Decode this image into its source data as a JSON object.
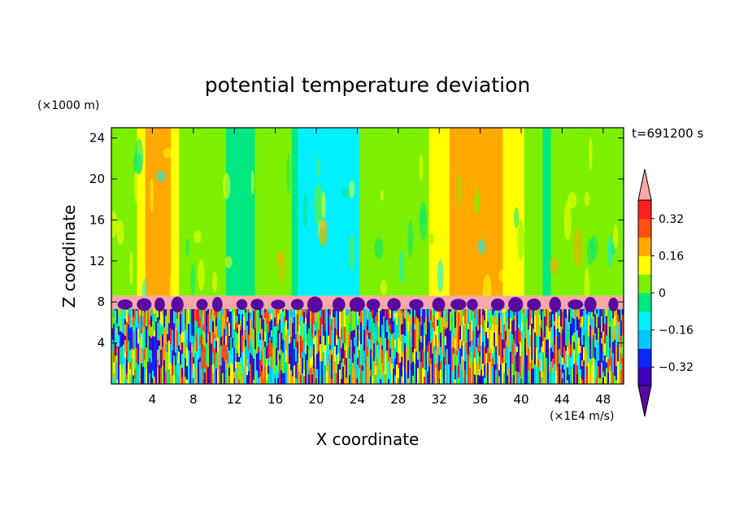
{
  "chart_data": {
    "type": "heatmap",
    "title": "potential temperature deviation",
    "xlabel": "X coordinate",
    "ylabel": "Z coordinate",
    "x_unit": "(×1E4 m/s)",
    "y_unit": "(×1000 m)",
    "time_label": "t=691200 s",
    "xlim": [
      0,
      50
    ],
    "ylim": [
      0,
      25
    ],
    "x_ticks": [
      "4",
      "8",
      "12",
      "16",
      "20",
      "24",
      "28",
      "32",
      "36",
      "40",
      "44",
      "48"
    ],
    "y_ticks": [
      "4",
      "8",
      "12",
      "16",
      "20",
      "24"
    ],
    "colorbar": {
      "tick_labels": [
        "0.32",
        "0.16",
        "0",
        "−0.16",
        "−0.32"
      ],
      "levels": [
        -0.4,
        -0.32,
        -0.24,
        -0.16,
        -0.08,
        0,
        0.08,
        0.16,
        0.24,
        0.32,
        0.4
      ],
      "colors": [
        "#5a0aa0",
        "#3c00c0",
        "#0a28ff",
        "#00c8ff",
        "#00f0ff",
        "#00e880",
        "#7cf000",
        "#ffff00",
        "#ffa800",
        "#ff5014",
        "#ff2020",
        "#f8a8a8"
      ],
      "extend": "both"
    },
    "upper_bands_x": [
      0,
      2.5,
      3.3,
      4.2,
      5.8,
      6.6,
      8.3,
      11.2,
      12,
      14,
      17.6,
      18.2,
      24.2,
      24.6,
      25.8,
      28.4,
      31,
      33,
      34.2,
      38.2,
      40.3,
      42.1,
      42.9,
      43.7,
      50
    ],
    "upper_bands_val": [
      0.04,
      0.08,
      0.2,
      0.2,
      0.08,
      0.04,
      0.04,
      -0.06,
      -0.06,
      0.04,
      -0.06,
      -0.1,
      0.04,
      0.04,
      0.04,
      0.04,
      0.14,
      0.2,
      0.2,
      0.08,
      0.04,
      -0.06,
      0.04,
      0.04,
      0.04
    ],
    "inversion_layer": {
      "z_bottom": 7.3,
      "z_top": 8.6,
      "value": 0.45
    },
    "boundary_layer": {
      "z_bottom": 0,
      "z_top": 7.3,
      "value_range": [
        -0.45,
        0.35
      ]
    }
  }
}
